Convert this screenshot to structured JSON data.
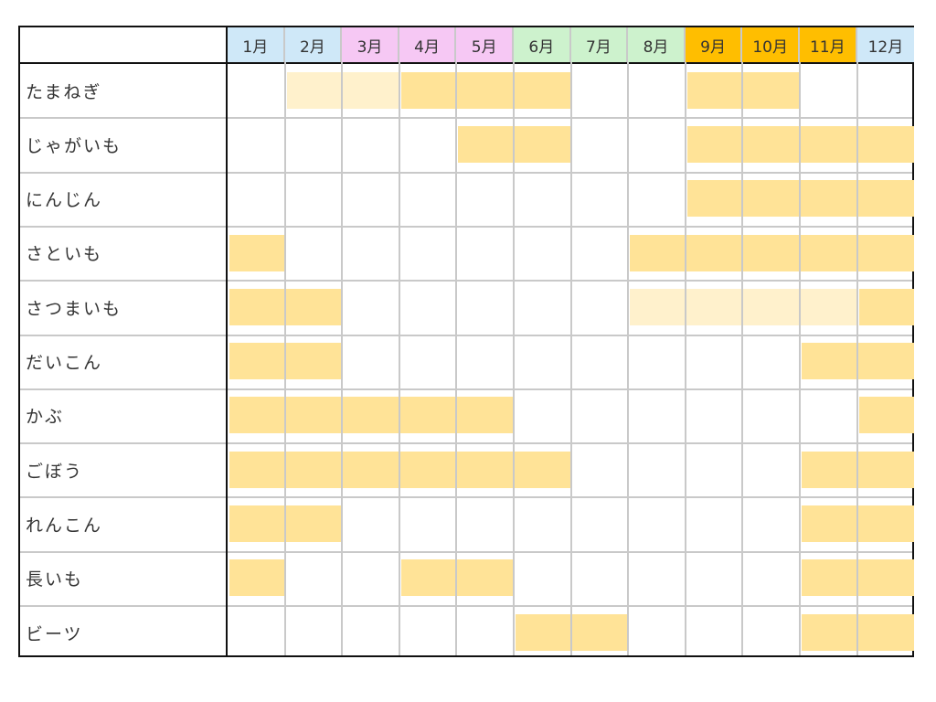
{
  "months": [
    {
      "label": "1月",
      "color": "#cfe8f8"
    },
    {
      "label": "2月",
      "color": "#cfe8f8"
    },
    {
      "label": "3月",
      "color": "#f6c8f4"
    },
    {
      "label": "4月",
      "color": "#f6c8f4"
    },
    {
      "label": "5月",
      "color": "#f6c8f4"
    },
    {
      "label": "6月",
      "color": "#cdf2cd"
    },
    {
      "label": "7月",
      "color": "#cdf2cd"
    },
    {
      "label": "8月",
      "color": "#cdf2cd"
    },
    {
      "label": "9月",
      "color": "#ffbe00"
    },
    {
      "label": "10月",
      "color": "#ffbe00"
    },
    {
      "label": "11月",
      "color": "#ffbe00"
    },
    {
      "label": "12月",
      "color": "#cfe8f8"
    }
  ],
  "legend_colors": {
    "season": "#ffe397",
    "partial": "#fff1cc"
  },
  "vegetables": [
    {
      "name": "たまねぎ",
      "season": [
        0,
        1,
        1,
        2,
        2,
        2,
        0,
        0,
        2,
        2,
        0,
        0
      ]
    },
    {
      "name": "じゃがいも",
      "season": [
        0,
        0,
        0,
        0,
        2,
        2,
        0,
        0,
        2,
        2,
        2,
        2
      ]
    },
    {
      "name": "にんじん",
      "season": [
        0,
        0,
        0,
        0,
        0,
        0,
        0,
        0,
        2,
        2,
        2,
        2
      ]
    },
    {
      "name": "さといも",
      "season": [
        2,
        0,
        0,
        0,
        0,
        0,
        0,
        2,
        2,
        2,
        2,
        2
      ]
    },
    {
      "name": "さつまいも",
      "season": [
        2,
        2,
        0,
        0,
        0,
        0,
        0,
        1,
        1,
        1,
        1,
        2
      ]
    },
    {
      "name": "だいこん",
      "season": [
        2,
        2,
        0,
        0,
        0,
        0,
        0,
        0,
        0,
        0,
        2,
        2
      ]
    },
    {
      "name": "かぶ",
      "season": [
        2,
        2,
        2,
        2,
        2,
        0,
        0,
        0,
        0,
        0,
        0,
        2
      ]
    },
    {
      "name": "ごぼう",
      "season": [
        2,
        2,
        2,
        2,
        2,
        2,
        0,
        0,
        0,
        0,
        2,
        2
      ]
    },
    {
      "name": "れんこん",
      "season": [
        2,
        2,
        0,
        0,
        0,
        0,
        0,
        0,
        0,
        0,
        2,
        2
      ]
    },
    {
      "name": "長いも",
      "season": [
        2,
        0,
        0,
        2,
        2,
        0,
        0,
        0,
        0,
        0,
        2,
        2
      ]
    },
    {
      "name": "ビーツ",
      "season": [
        0,
        0,
        0,
        0,
        0,
        2,
        2,
        0,
        0,
        0,
        2,
        2
      ]
    }
  ]
}
